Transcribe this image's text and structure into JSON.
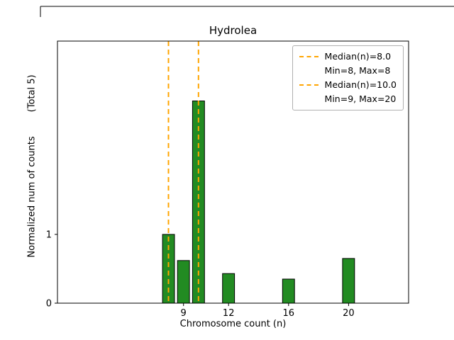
{
  "figure": {
    "title": "Hydrolea",
    "xlabel": "Chromosome count (n)",
    "ylabel_main": "Normalized num of counts",
    "ylabel_note": "(Total 5)"
  },
  "chart_data": {
    "type": "bar",
    "title": "Hydrolea",
    "xlabel": "Chromosome count (n)",
    "ylabel": "Normalized num of counts (Total 5)",
    "x": [
      8,
      9,
      10,
      12,
      16,
      20
    ],
    "values": [
      1.0,
      0.62,
      2.94,
      0.43,
      0.35,
      0.65
    ],
    "bar_width": 0.8,
    "bar_color": "#228B22",
    "bar_edge_color": "#000000",
    "xlim": [
      0.6,
      24.0
    ],
    "ylim": [
      0,
      3.81
    ],
    "xticks": [
      9,
      12,
      16,
      20
    ],
    "yticks": [
      0,
      1
    ],
    "grid": false,
    "vlines": [
      {
        "x": 8,
        "color": "#FFA500",
        "style": "dashed",
        "label": "Median(n)=8.0"
      },
      {
        "x": 10,
        "color": "#FFA500",
        "style": "dashed",
        "label": "Median(n)=10.0"
      }
    ],
    "legend": {
      "position": "upper right",
      "entries": [
        {
          "label": "Median(n)=8.0",
          "handle": "dashed-line",
          "color": "#FFA500"
        },
        {
          "label": "Min=8, Max=8",
          "handle": "none",
          "color": ""
        },
        {
          "label": "Median(n)=10.0",
          "handle": "dashed-line",
          "color": "#FFA500"
        },
        {
          "label": "Min=9, Max=20",
          "handle": "none",
          "color": ""
        }
      ]
    }
  }
}
